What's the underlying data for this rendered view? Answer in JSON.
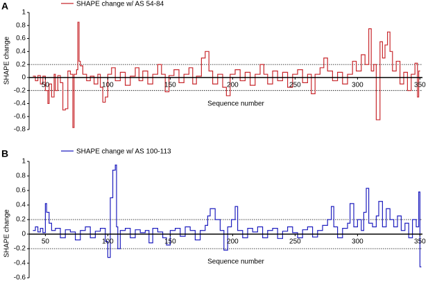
{
  "chart_data": [
    {
      "type": "line",
      "panel_label": "A",
      "drawstyle": "steps-post",
      "xlabel": "Sequence number",
      "ylabel": "SHAPE change",
      "xlim": [
        37,
        352
      ],
      "xticks": [
        50,
        100,
        150,
        200,
        250,
        300,
        350
      ],
      "ylim": [
        -0.8,
        1
      ],
      "yticks": [
        -0.8,
        -0.6,
        -0.4,
        -0.2,
        0,
        0.2,
        0.4,
        0.6,
        0.8,
        1
      ],
      "reference_lines": [
        0.2,
        -0.2
      ],
      "x": [
        40,
        42,
        44,
        46,
        48,
        50,
        52,
        53,
        55,
        57,
        58,
        60,
        62,
        64,
        66,
        68,
        70,
        72,
        73,
        75,
        76,
        77,
        78,
        80,
        83,
        86,
        89,
        92,
        94,
        96,
        98,
        100,
        103,
        106,
        110,
        114,
        118,
        122,
        125,
        128,
        132,
        136,
        140,
        143,
        146,
        149,
        153,
        157,
        161,
        165,
        168,
        171,
        175,
        178,
        181,
        184,
        188,
        192,
        195,
        198,
        202,
        206,
        210,
        214,
        218,
        222,
        225,
        228,
        232,
        236,
        240,
        244,
        248,
        252,
        256,
        260,
        263,
        266,
        270,
        273,
        276,
        280,
        284,
        288,
        292,
        296,
        299,
        303,
        306,
        309,
        311,
        313,
        315,
        318,
        320,
        322,
        324,
        326,
        328,
        331,
        334,
        337,
        340,
        343,
        346,
        348,
        349
      ],
      "series": [
        {
          "name": "SHAPE change w/ AS 54-84",
          "color": "#c8282d",
          "values": [
            0.02,
            -0.05,
            0.03,
            -0.1,
            0.02,
            -0.2,
            -0.4,
            -0.1,
            -0.3,
            0.05,
            -0.2,
            0.03,
            -0.08,
            -0.5,
            -0.48,
            0.1,
            0.05,
            -0.77,
            0.05,
            0.12,
            0.85,
            0.25,
            0.18,
            0.05,
            -0.05,
            0.02,
            -0.1,
            0.05,
            -0.15,
            -0.38,
            -0.3,
            0.05,
            0.15,
            -0.05,
            0.08,
            -0.12,
            0.02,
            0.15,
            -0.05,
            0.1,
            -0.1,
            0.05,
            0.2,
            0.05,
            -0.22,
            0.03,
            0.12,
            -0.08,
            0.05,
            0.15,
            -0.1,
            0.02,
            0.3,
            0.4,
            0.1,
            -0.1,
            0.05,
            -0.15,
            -0.28,
            0.05,
            0.12,
            -0.05,
            0.08,
            -0.12,
            0.05,
            0.2,
            0.05,
            -0.1,
            0.1,
            -0.05,
            0.08,
            -0.15,
            0.05,
            0.12,
            -0.08,
            0.05,
            -0.25,
            0.05,
            0.15,
            0.3,
            0.1,
            -0.05,
            0.08,
            -0.1,
            0.05,
            0.25,
            0.1,
            0.35,
            0.2,
            0.75,
            0.1,
            0.2,
            -0.65,
            0.55,
            0.3,
            0.5,
            0.7,
            0.4,
            0.1,
            0.25,
            -0.1,
            0.08,
            -0.2,
            0.05,
            0.22,
            -0.3,
            0.1
          ]
        }
      ]
    },
    {
      "type": "line",
      "panel_label": "B",
      "drawstyle": "steps-post",
      "xlabel": "Sequence number",
      "ylabel": "SHAPE change",
      "xlim": [
        37,
        352
      ],
      "xticks": [
        50,
        100,
        150,
        200,
        250,
        300,
        350
      ],
      "ylim": [
        -0.6,
        1
      ],
      "yticks": [
        -0.6,
        -0.4,
        -0.2,
        0,
        0.2,
        0.4,
        0.6,
        0.8,
        1
      ],
      "reference_lines": [
        0.2,
        -0.2
      ],
      "x": [
        40,
        42,
        44,
        46,
        48,
        50,
        51,
        53,
        55,
        58,
        62,
        66,
        70,
        74,
        78,
        82,
        86,
        90,
        94,
        98,
        100,
        102,
        104,
        106,
        107,
        108,
        110,
        114,
        118,
        122,
        126,
        130,
        133,
        136,
        140,
        144,
        147,
        150,
        154,
        158,
        162,
        166,
        170,
        174,
        178,
        180,
        182,
        186,
        190,
        193,
        196,
        199,
        202,
        204,
        208,
        212,
        216,
        220,
        224,
        228,
        232,
        236,
        240,
        244,
        248,
        252,
        256,
        260,
        264,
        268,
        272,
        276,
        279,
        281,
        284,
        288,
        292,
        294,
        297,
        300,
        303,
        305,
        307,
        309,
        312,
        315,
        317,
        320,
        323,
        326,
        329,
        332,
        335,
        338,
        341,
        344,
        347,
        349,
        350
      ],
      "series": [
        {
          "name": "SHAPE change w/ AS 100-113",
          "color": "#1f1fbf",
          "values": [
            0.05,
            0.1,
            0.03,
            0.08,
            0.02,
            0.42,
            0.3,
            0.15,
            0.05,
            0.08,
            -0.05,
            0.06,
            0.03,
            -0.08,
            0.05,
            0.1,
            -0.05,
            0.04,
            0.08,
            -0.1,
            -0.32,
            0.5,
            0.88,
            0.95,
            0.1,
            -0.2,
            0.05,
            0.08,
            -0.05,
            0.06,
            0.02,
            0.05,
            -0.12,
            0.08,
            0.03,
            -0.05,
            -0.15,
            0.05,
            0.08,
            -0.03,
            0.1,
            0.05,
            -0.08,
            0.05,
            0.12,
            0.25,
            0.35,
            0.2,
            0.05,
            -0.22,
            0.1,
            0.2,
            0.38,
            0.05,
            -0.05,
            0.08,
            0.03,
            0.1,
            -0.05,
            0.05,
            0.08,
            -0.06,
            0.04,
            0.1,
            0.02,
            -0.05,
            0.06,
            0.1,
            -0.04,
            0.05,
            0.12,
            0.2,
            0.38,
            0.1,
            -0.05,
            0.08,
            0.15,
            0.42,
            0.1,
            0.2,
            0.05,
            0.3,
            0.63,
            0.15,
            0.1,
            0.25,
            0.45,
            0.1,
            0.35,
            0.2,
            0.1,
            0.25,
            0.05,
            0.15,
            -0.05,
            0.2,
            0.1,
            0.58,
            -0.45
          ]
        }
      ]
    }
  ]
}
